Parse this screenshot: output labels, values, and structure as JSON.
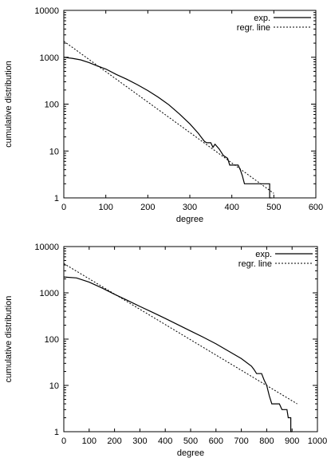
{
  "chart_data": [
    {
      "type": "line",
      "xlabel": "degree",
      "ylabel": "cumulative distribution",
      "xlim": [
        0,
        600
      ],
      "ylim": [
        1,
        10000
      ],
      "yscale": "log",
      "xticks": [
        0,
        100,
        200,
        300,
        400,
        500,
        600
      ],
      "yticks": [
        1,
        10,
        100,
        1000,
        10000
      ],
      "grid": false,
      "legend_position": "top-right",
      "series": [
        {
          "name": "exp.",
          "style": "solid",
          "x": [
            0,
            20,
            40,
            60,
            80,
            100,
            125,
            150,
            175,
            200,
            225,
            250,
            275,
            300,
            320,
            335,
            340,
            350,
            355,
            360,
            370,
            380,
            390,
            395,
            400,
            405,
            410,
            415,
            420,
            425,
            430,
            440,
            450,
            460,
            470,
            480,
            490,
            490,
            495
          ],
          "y": [
            1000,
            950,
            880,
            770,
            650,
            560,
            430,
            340,
            260,
            195,
            140,
            97,
            62,
            38,
            24,
            16,
            15,
            15,
            12,
            14,
            11,
            8,
            7,
            5,
            5,
            5,
            5,
            5,
            4,
            3,
            2,
            2,
            2,
            2,
            2,
            2,
            2,
            1,
            1
          ]
        },
        {
          "name": "regr. line",
          "style": "dashed",
          "x": [
            0,
            500
          ],
          "y": [
            2200,
            1.25
          ]
        }
      ]
    },
    {
      "type": "line",
      "xlabel": "degree",
      "ylabel": "cumulative distribution",
      "xlim": [
        0,
        1000
      ],
      "ylim": [
        1,
        10000
      ],
      "yscale": "log",
      "xticks": [
        0,
        100,
        200,
        300,
        400,
        500,
        600,
        700,
        800,
        900,
        1000
      ],
      "yticks": [
        1,
        10,
        100,
        1000,
        10000
      ],
      "grid": false,
      "legend_position": "top-right",
      "series": [
        {
          "name": "exp.",
          "style": "solid",
          "x": [
            0,
            50,
            100,
            150,
            200,
            250,
            300,
            350,
            400,
            450,
            500,
            550,
            600,
            650,
            700,
            740,
            750,
            760,
            780,
            790,
            800,
            810,
            820,
            830,
            850,
            860,
            870,
            875,
            880,
            885,
            890,
            895,
            895,
            900
          ],
          "y": [
            2200,
            2100,
            1700,
            1280,
            930,
            690,
            510,
            380,
            280,
            205,
            150,
            110,
            79,
            55,
            38,
            26,
            22,
            18,
            18,
            13,
            10,
            6,
            4,
            4,
            4,
            3,
            3,
            3,
            3,
            2,
            2,
            2,
            1,
            1
          ]
        },
        {
          "name": "regr. line",
          "style": "dashed",
          "x": [
            0,
            920
          ],
          "y": [
            4300,
            4
          ]
        }
      ]
    }
  ]
}
